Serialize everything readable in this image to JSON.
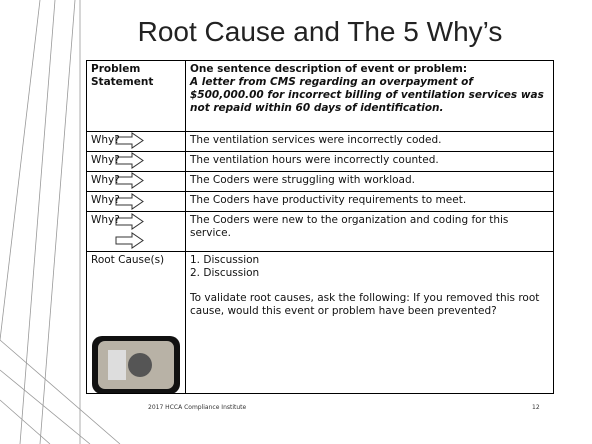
{
  "title": "Root Cause and The 5 Why’s",
  "table": {
    "header": {
      "label": "Problem Statement",
      "heading": "One sentence description of event or problem:",
      "description": "A letter from CMS regarding an overpayment of $500,000.00 for incorrect billing of ventilation services was not repaid within 60 days of identification."
    },
    "whys": [
      {
        "label": "Why?",
        "text": "The ventilation services were incorrectly coded."
      },
      {
        "label": "Why?",
        "text": "The ventilation hours were incorrectly counted."
      },
      {
        "label": "Why?",
        "text": "The Coders were struggling with workload."
      },
      {
        "label": "Why?",
        "text": "The Coders have productivity requirements to meet."
      },
      {
        "label": "Why?",
        "text": "The Coders were new to the organization and coding for this service."
      }
    ],
    "root_cause": {
      "label": "Root Cause(s)",
      "items": [
        "1. Discussion",
        "2. Discussion"
      ],
      "note": "To validate root causes, ask the following: If you removed this root cause, would this event or problem have been prevented?"
    }
  },
  "footer": {
    "event": "2017 HCCA Compliance Institute",
    "page": "12"
  }
}
